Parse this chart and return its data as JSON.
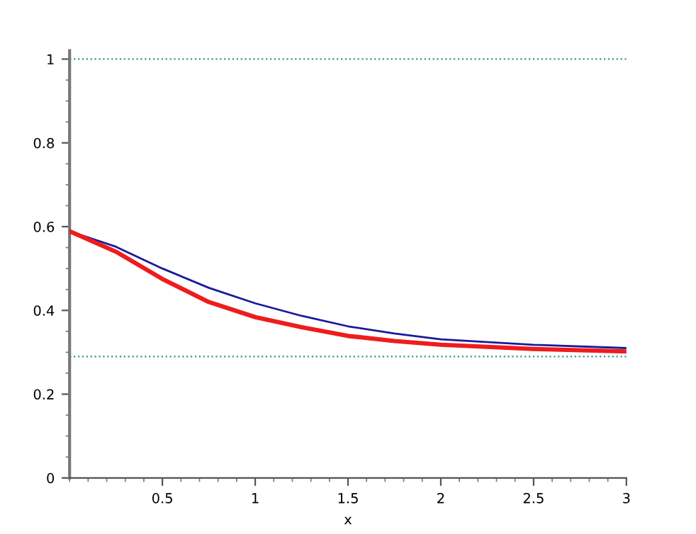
{
  "chart_data": {
    "type": "line",
    "xlabel": "x",
    "x": [
      0,
      0.25,
      0.5,
      0.75,
      1,
      1.25,
      1.5,
      1.75,
      2,
      2.5,
      3
    ],
    "series": [
      {
        "color": "#1a1a99",
        "values": [
          0.589,
          0.552,
          0.5,
          0.454,
          0.417,
          0.387,
          0.362,
          0.345,
          0.331,
          0.318,
          0.31
        ]
      },
      {
        "color": "#ee1c1c",
        "values": [
          0.589,
          0.54,
          0.475,
          0.42,
          0.384,
          0.36,
          0.339,
          0.327,
          0.318,
          0.308,
          0.302
        ]
      }
    ],
    "xlim": [
      0,
      3
    ],
    "ylim": [
      0,
      1.02
    ],
    "xticks": [
      0.5,
      1,
      1.5,
      2,
      2.5,
      3
    ],
    "yticks": [
      0,
      0.2,
      0.4,
      0.6,
      0.8,
      1
    ],
    "ref_lines": [
      {
        "axis": "y",
        "value": 1,
        "color": "#339988",
        "line_style": "dotted"
      },
      {
        "axis": "y",
        "value": 0.29,
        "color": "#339988",
        "line_style": "dotted"
      }
    ],
    "grid": false,
    "legend": false,
    "marker": "none",
    "line_style": "solid"
  }
}
